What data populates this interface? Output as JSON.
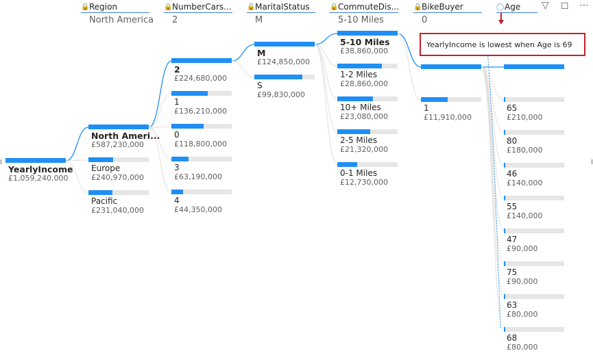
{
  "toolbar": {
    "filter_icon": "filter-icon",
    "focus_icon": "focus-mode-icon",
    "more_icon": "more-options-icon"
  },
  "colors": {
    "bar": "#1f8ff5",
    "track": "#e6e6e6",
    "link": "#1f8ff5",
    "callout_border": "#c0202a",
    "arrow": "#c0202a"
  },
  "levels": [
    {
      "name": "Region",
      "value": "North America"
    },
    {
      "name": "NumberCars...",
      "value": "2"
    },
    {
      "name": "MaritalStatus",
      "value": "M"
    },
    {
      "name": "CommuteDis...",
      "value": "5-10 Miles"
    },
    {
      "name": "BikeBuyer",
      "value": "0"
    },
    {
      "name": "Age",
      "value": ""
    }
  ],
  "callout": {
    "text": "YearlyIncome is lowest when Age is 69"
  },
  "chart_data": {
    "type": "decomposition-tree",
    "root": {
      "label": "YearlyIncome",
      "amount": "£1,059,240,000",
      "value": 1059240000
    },
    "columns": [
      {
        "level": "Region",
        "expanded": "North America",
        "nodes": [
          {
            "label": "North Ameri...",
            "amount": "£587,230,000",
            "value": 587230000
          },
          {
            "label": "Europe",
            "amount": "£240,970,000",
            "value": 240970000
          },
          {
            "label": "Pacific",
            "amount": "£231,040,000",
            "value": 231040000
          }
        ]
      },
      {
        "level": "NumberCars...",
        "expanded": "2",
        "nodes": [
          {
            "label": "2",
            "amount": "£224,680,000",
            "value": 224680000
          },
          {
            "label": "1",
            "amount": "£136,210,000",
            "value": 136210000
          },
          {
            "label": "0",
            "amount": "£118,800,000",
            "value": 118800000
          },
          {
            "label": "3",
            "amount": "£63,190,000",
            "value": 63190000
          },
          {
            "label": "4",
            "amount": "£44,350,000",
            "value": 44350000
          }
        ]
      },
      {
        "level": "MaritalStatus",
        "expanded": "M",
        "nodes": [
          {
            "label": "M",
            "amount": "£124,850,000",
            "value": 124850000
          },
          {
            "label": "S",
            "amount": "£99,830,000",
            "value": 99830000
          }
        ]
      },
      {
        "level": "CommuteDis...",
        "expanded": "5-10 Miles",
        "nodes": [
          {
            "label": "5-10 Miles",
            "amount": "£38,860,000",
            "value": 38860000
          },
          {
            "label": "1-2 Miles",
            "amount": "£28,860,000",
            "value": 28860000
          },
          {
            "label": "10+ Miles",
            "amount": "£23,080,000",
            "value": 23080000
          },
          {
            "label": "2-5 Miles",
            "amount": "£21,320,000",
            "value": 21320000
          },
          {
            "label": "0-1 Miles",
            "amount": "£12,730,000",
            "value": 12730000
          }
        ]
      },
      {
        "level": "BikeBuyer",
        "expanded": "0",
        "nodes": [
          {
            "label": "",
            "amount": "",
            "value": 26950000
          },
          {
            "label": "1",
            "amount": "£11,910,000",
            "value": 11910000
          }
        ]
      },
      {
        "level": "Age",
        "expanded": "",
        "nodes": [
          {
            "label": "",
            "amount": "",
            "value": 26950000
          },
          {
            "label": "65",
            "amount": "£210,000",
            "value": 210000
          },
          {
            "label": "80",
            "amount": "£180,000",
            "value": 180000
          },
          {
            "label": "46",
            "amount": "£140,000",
            "value": 140000
          },
          {
            "label": "55",
            "amount": "£140,000",
            "value": 140000
          },
          {
            "label": "47",
            "amount": "£90,000",
            "value": 90000
          },
          {
            "label": "75",
            "amount": "£90,000",
            "value": 90000
          },
          {
            "label": "63",
            "amount": "£80,000",
            "value": 80000
          },
          {
            "label": "68",
            "amount": "£80,000",
            "value": 80000
          }
        ]
      }
    ]
  }
}
